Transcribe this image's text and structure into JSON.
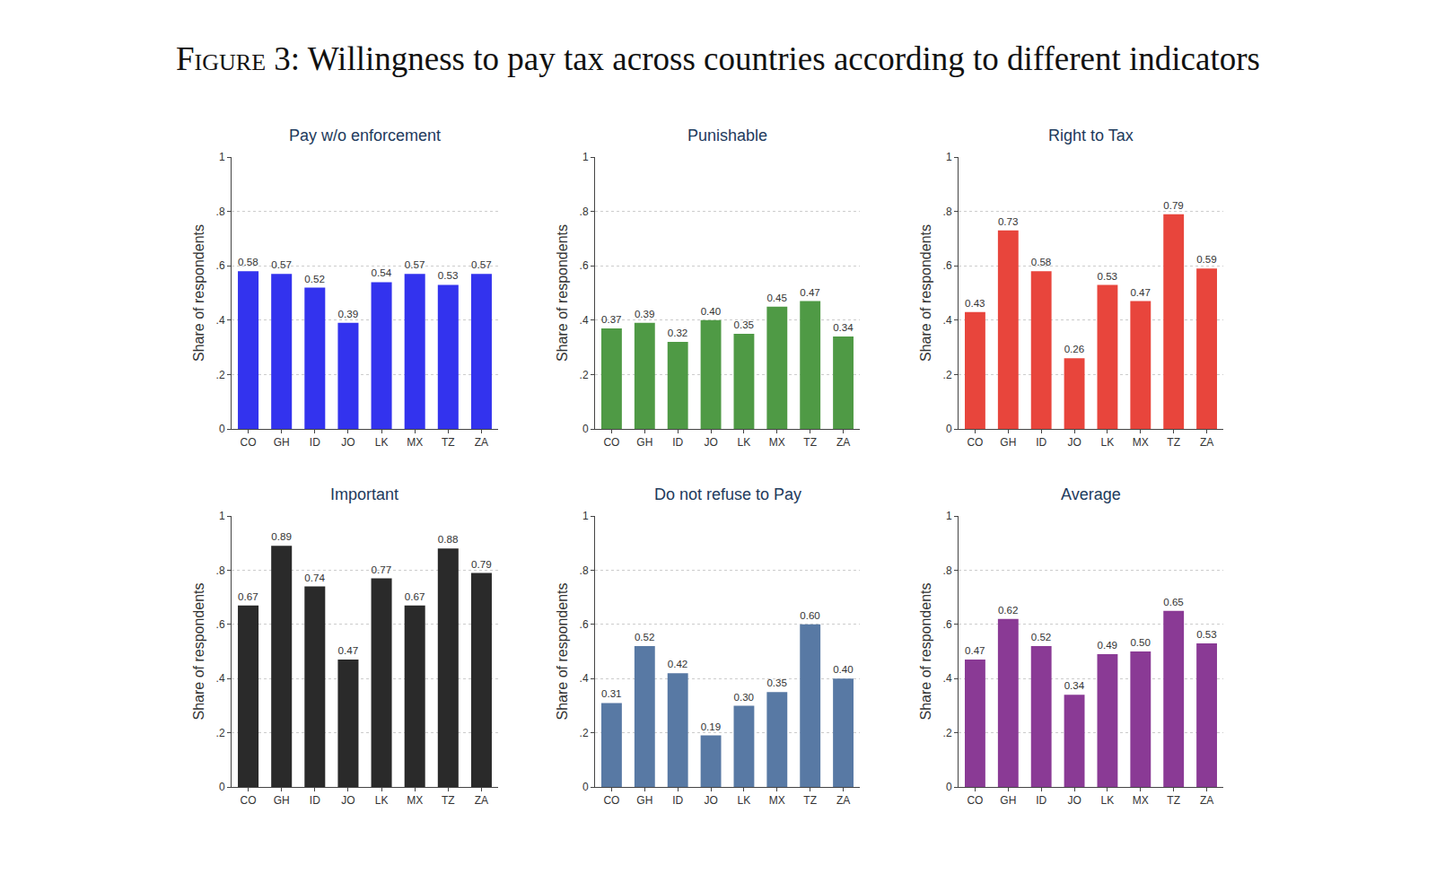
{
  "figure_title": {
    "label": "Figure 3:",
    "text": "Willingness to pay tax across countries according to different indicators"
  },
  "chart_data": [
    {
      "type": "bar",
      "title": "Pay w/o enforcement",
      "ylabel": "Share of respondents",
      "categories": [
        "CO",
        "GH",
        "ID",
        "JO",
        "LK",
        "MX",
        "TZ",
        "ZA"
      ],
      "values": [
        0.58,
        0.57,
        0.52,
        0.39,
        0.54,
        0.57,
        0.53,
        0.57
      ],
      "value_labels": [
        "0.58",
        "0.57",
        "0.52",
        "0.39",
        "0.54",
        "0.57",
        "0.53",
        "0.57"
      ],
      "color": "#3333ee",
      "ylim": [
        0,
        1
      ],
      "yticks": [
        0,
        {
          "value": 0.2,
          "label": ".2"
        },
        {
          "value": 0.4,
          "label": ".4"
        },
        {
          "value": 0.6,
          "label": ".6"
        },
        {
          "value": 0.8,
          "label": ".8"
        },
        1
      ],
      "grid": true,
      "data_labels": true
    },
    {
      "type": "bar",
      "title": "Punishable",
      "ylabel": "Share of respondents",
      "categories": [
        "CO",
        "GH",
        "ID",
        "JO",
        "LK",
        "MX",
        "TZ",
        "ZA"
      ],
      "values": [
        0.37,
        0.39,
        0.32,
        0.4,
        0.35,
        0.45,
        0.47,
        0.34
      ],
      "value_labels": [
        "0.37",
        "0.39",
        "0.32",
        "0.40",
        "0.35",
        "0.45",
        "0.47",
        "0.34"
      ],
      "color": "#4f9a45",
      "ylim": [
        0,
        1
      ],
      "yticks": [
        0,
        {
          "value": 0.2,
          "label": ".2"
        },
        {
          "value": 0.4,
          "label": ".4"
        },
        {
          "value": 0.6,
          "label": ".6"
        },
        {
          "value": 0.8,
          "label": ".8"
        },
        1
      ],
      "grid": true,
      "data_labels": true
    },
    {
      "type": "bar",
      "title": "Right to Tax",
      "ylabel": "Share of respondents",
      "categories": [
        "CO",
        "GH",
        "ID",
        "JO",
        "LK",
        "MX",
        "TZ",
        "ZA"
      ],
      "values": [
        0.43,
        0.73,
        0.58,
        0.26,
        0.53,
        0.47,
        0.79,
        0.59
      ],
      "value_labels": [
        "0.43",
        "0.73",
        "0.58",
        "0.26",
        "0.53",
        "0.47",
        "0.79",
        "0.59"
      ],
      "color": "#e8453c",
      "ylim": [
        0,
        1
      ],
      "yticks": [
        0,
        {
          "value": 0.2,
          "label": ".2"
        },
        {
          "value": 0.4,
          "label": ".4"
        },
        {
          "value": 0.6,
          "label": ".6"
        },
        {
          "value": 0.8,
          "label": ".8"
        },
        1
      ],
      "grid": true,
      "data_labels": true
    },
    {
      "type": "bar",
      "title": "Important",
      "ylabel": "Share of respondents",
      "categories": [
        "CO",
        "GH",
        "ID",
        "JO",
        "LK",
        "MX",
        "TZ",
        "ZA"
      ],
      "values": [
        0.67,
        0.89,
        0.74,
        0.47,
        0.77,
        0.67,
        0.88,
        0.79
      ],
      "value_labels": [
        "0.67",
        "0.89",
        "0.74",
        "0.47",
        "0.77",
        "0.67",
        "0.88",
        "0.79"
      ],
      "color": "#2a2a2a",
      "ylim": [
        0,
        1
      ],
      "yticks": [
        0,
        {
          "value": 0.2,
          "label": ".2"
        },
        {
          "value": 0.4,
          "label": ".4"
        },
        {
          "value": 0.6,
          "label": ".6"
        },
        {
          "value": 0.8,
          "label": ".8"
        },
        1
      ],
      "grid": true,
      "data_labels": true
    },
    {
      "type": "bar",
      "title": "Do not refuse to Pay",
      "ylabel": "Share of respondents",
      "categories": [
        "CO",
        "GH",
        "ID",
        "JO",
        "LK",
        "MX",
        "TZ",
        "ZA"
      ],
      "values": [
        0.31,
        0.52,
        0.42,
        0.19,
        0.3,
        0.35,
        0.6,
        0.4
      ],
      "value_labels": [
        "0.31",
        "0.52",
        "0.42",
        "0.19",
        "0.30",
        "0.35",
        "0.60",
        "0.40"
      ],
      "color": "#5879a4",
      "ylim": [
        0,
        1
      ],
      "yticks": [
        0,
        {
          "value": 0.2,
          "label": ".2"
        },
        {
          "value": 0.4,
          "label": ".4"
        },
        {
          "value": 0.6,
          "label": ".6"
        },
        {
          "value": 0.8,
          "label": ".8"
        },
        1
      ],
      "grid": true,
      "data_labels": true
    },
    {
      "type": "bar",
      "title": "Average",
      "ylabel": "Share of respondents",
      "categories": [
        "CO",
        "GH",
        "ID",
        "JO",
        "LK",
        "MX",
        "TZ",
        "ZA"
      ],
      "values": [
        0.47,
        0.62,
        0.52,
        0.34,
        0.49,
        0.5,
        0.65,
        0.53
      ],
      "value_labels": [
        "0.47",
        "0.62",
        "0.52",
        "0.34",
        "0.49",
        "0.50",
        "0.65",
        "0.53"
      ],
      "color": "#8a3a95",
      "ylim": [
        0,
        1
      ],
      "yticks": [
        0,
        {
          "value": 0.2,
          "label": ".2"
        },
        {
          "value": 0.4,
          "label": ".4"
        },
        {
          "value": 0.6,
          "label": ".6"
        },
        {
          "value": 0.8,
          "label": ".8"
        },
        1
      ],
      "grid": true,
      "data_labels": true
    }
  ]
}
